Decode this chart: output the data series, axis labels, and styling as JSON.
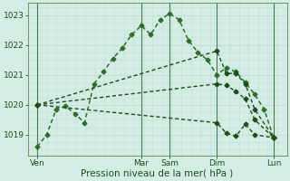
{
  "background_color": "#d4ede4",
  "grid_color": "#c0ddd4",
  "line_color1": "#2d6e2d",
  "line_color2": "#1a4f1a",
  "title": "Pression niveau de la mer( hPa )",
  "ylabel_ticks": [
    1019,
    1020,
    1021,
    1022,
    1023
  ],
  "xlabels": [
    "Ven",
    "Mar",
    "Sam",
    "Dim",
    "Lun"
  ],
  "xpositions": [
    0,
    5.5,
    7.0,
    9.5,
    12.5
  ],
  "vline_positions": [
    0.0,
    5.5,
    7.0,
    9.5,
    12.5
  ],
  "series": [
    {
      "x": [
        0.0,
        0.5,
        1.0,
        1.5,
        2.0,
        2.5,
        3.0,
        3.5,
        4.0,
        4.5,
        5.0,
        5.5,
        6.0,
        6.5,
        7.0,
        7.5,
        8.0,
        8.5,
        9.0,
        9.5,
        10.0,
        10.5,
        11.0,
        11.5,
        12.0,
        12.5
      ],
      "y": [
        1018.6,
        1019.0,
        1019.85,
        1019.95,
        1019.7,
        1019.4,
        1020.7,
        1021.1,
        1021.55,
        1021.9,
        1022.35,
        1022.65,
        1022.35,
        1022.85,
        1023.05,
        1022.85,
        1022.15,
        1021.75,
        1021.5,
        1021.0,
        1021.25,
        1021.1,
        1020.75,
        1020.35,
        1019.85,
        1018.9
      ],
      "color": "#2d6e2d",
      "linewidth": 1.1,
      "marker": "D",
      "markersize": 2.5
    },
    {
      "x": [
        0.0,
        9.5,
        10.0,
        10.5,
        11.0,
        11.5,
        12.5
      ],
      "y": [
        1020.0,
        1021.8,
        1021.05,
        1021.05,
        1020.7,
        1019.85,
        1018.9
      ],
      "color": "#1a4f1a",
      "linewidth": 1.0,
      "marker": "D",
      "markersize": 2.5
    },
    {
      "x": [
        0.0,
        9.5,
        10.0,
        10.5,
        11.0,
        11.5,
        12.5
      ],
      "y": [
        1020.0,
        1020.7,
        1020.65,
        1020.45,
        1020.2,
        1019.5,
        1018.9
      ],
      "color": "#1a4f1a",
      "linewidth": 1.0,
      "marker": "D",
      "markersize": 2.5
    },
    {
      "x": [
        0.0,
        9.5,
        10.0,
        10.5,
        11.0,
        11.5,
        12.5
      ],
      "y": [
        1020.0,
        1019.4,
        1019.05,
        1018.95,
        1019.35,
        1019.0,
        1018.9
      ],
      "color": "#1a4f1a",
      "linewidth": 1.0,
      "marker": "D",
      "markersize": 2.5
    }
  ],
  "xmin": -0.5,
  "xmax": 13.2,
  "ymin": 1018.3,
  "ymax": 1023.4,
  "figsize": [
    3.2,
    2.0
  ],
  "dpi": 100
}
